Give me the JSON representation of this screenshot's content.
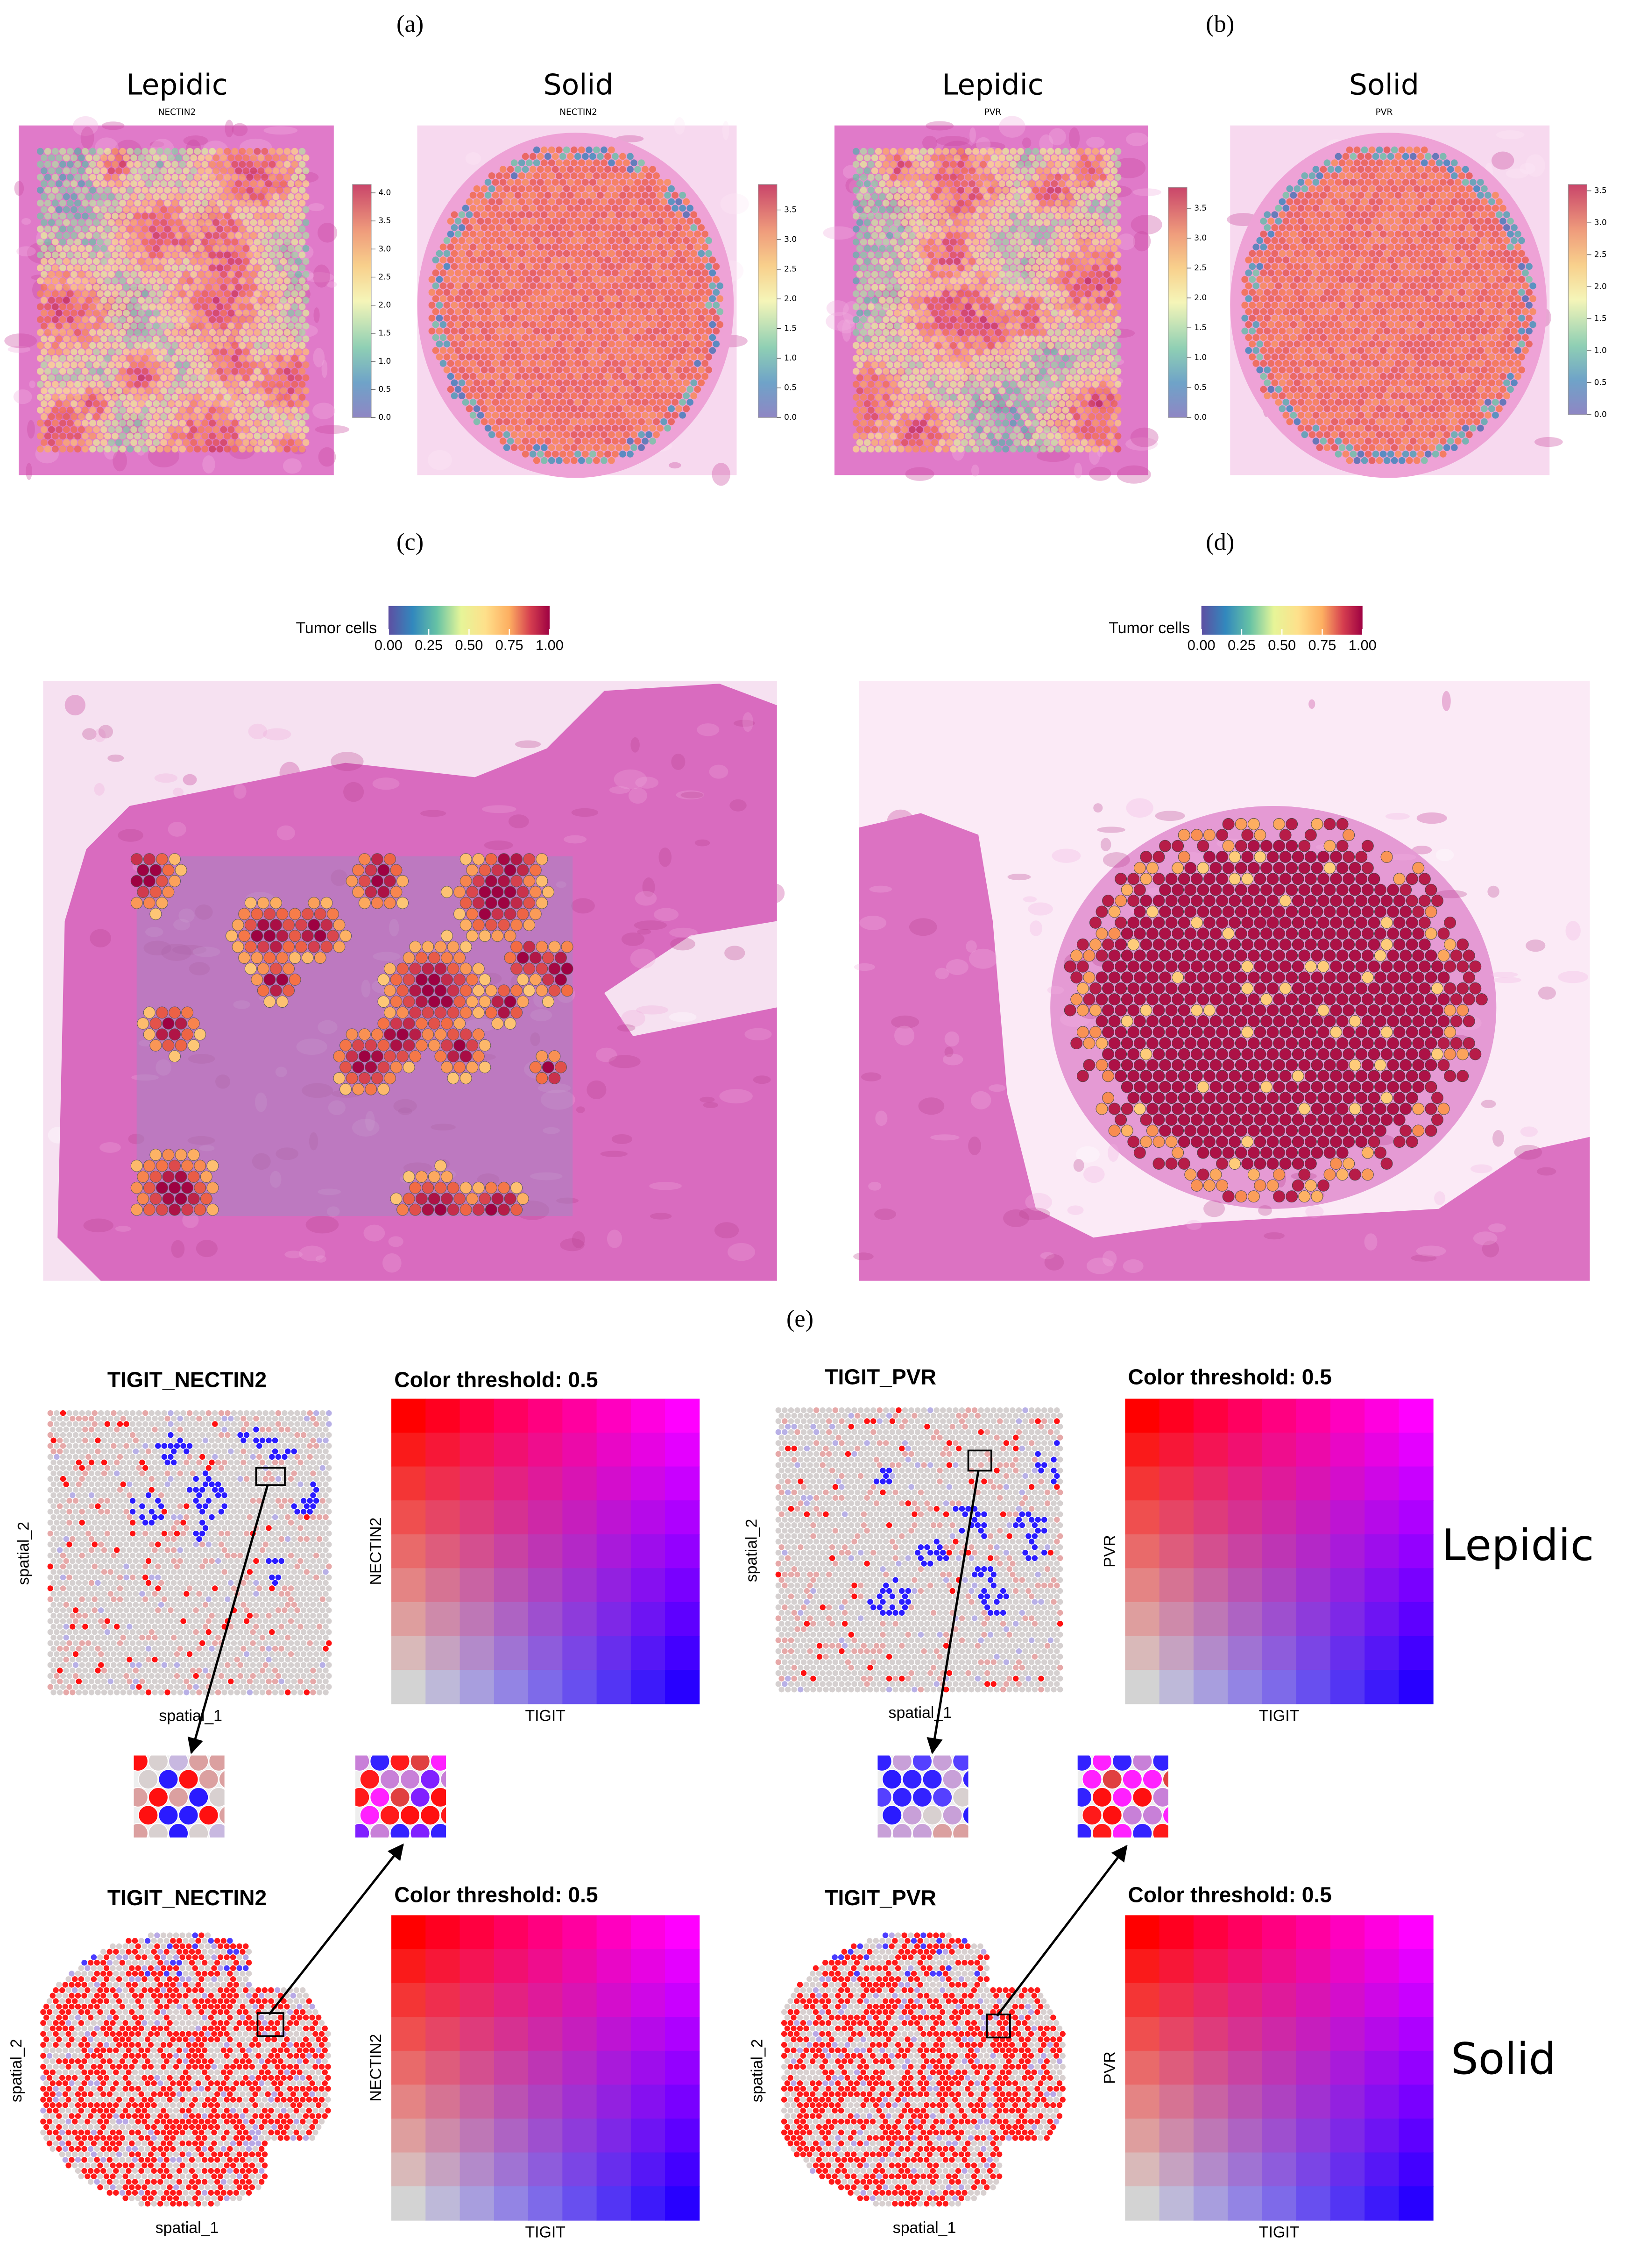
{
  "a": {
    "label": "(a)",
    "maps": [
      {
        "title": "Lepidic",
        "gene": "NECTIN2",
        "colorbar": {
          "lim": [
            0,
            4.15
          ],
          "ticks": [
            {
              "value": 0,
              "label": "0.0"
            },
            0.5,
            {
              "value": 1,
              "label": "1.0"
            },
            1.5,
            {
              "value": 2,
              "label": "2.0"
            },
            2.5,
            {
              "value": 3,
              "label": "3.0"
            },
            3.5,
            {
              "value": 4,
              "label": "4.0"
            }
          ]
        }
      },
      {
        "title": "Solid",
        "gene": "NECTIN2",
        "colorbar": {
          "lim": [
            0,
            3.93
          ],
          "ticks": [
            {
              "value": 0,
              "label": "0.0"
            },
            0.5,
            {
              "value": 1,
              "label": "1.0"
            },
            1.5,
            {
              "value": 2,
              "label": "2.0"
            },
            2.5,
            {
              "value": 3,
              "label": "3.0"
            },
            3.5
          ]
        }
      }
    ]
  },
  "b": {
    "label": "(b)",
    "maps": [
      {
        "title": "Lepidic",
        "gene": "PVR",
        "colorbar": {
          "lim": [
            0,
            3.85
          ],
          "ticks": [
            {
              "value": 0,
              "label": "0.0"
            },
            0.5,
            {
              "value": 1,
              "label": "1.0"
            },
            1.5,
            {
              "value": 2,
              "label": "2.0"
            },
            2.5,
            {
              "value": 3,
              "label": "3.0"
            },
            3.5
          ]
        }
      },
      {
        "title": "Solid",
        "gene": "PVR",
        "colorbar": {
          "lim": [
            0,
            3.6
          ],
          "ticks": [
            {
              "value": 0,
              "label": "0.0"
            },
            0.5,
            {
              "value": 1,
              "label": "1.0"
            },
            1.5,
            {
              "value": 2,
              "label": "2.0"
            },
            2.5,
            {
              "value": 3,
              "label": "3.0"
            },
            3.5
          ]
        }
      }
    ]
  },
  "c": {
    "label": "(c)",
    "legend_title": "Tumor cells",
    "colorbar": {
      "lim": [
        0,
        1
      ],
      "ticks": [
        {
          "value": 0,
          "label": "0.00"
        },
        0.25,
        {
          "value": 0.5,
          "label": "0.50"
        },
        0.75,
        {
          "value": 1,
          "label": "1.00"
        }
      ]
    }
  },
  "d": {
    "label": "(d)",
    "legend_title": "Tumor cells",
    "colorbar": {
      "lim": [
        0,
        1
      ],
      "ticks": [
        {
          "value": 0,
          "label": "0.00"
        },
        0.25,
        {
          "value": 0.5,
          "label": "0.50"
        },
        0.75,
        {
          "value": 1,
          "label": "1.00"
        }
      ]
    }
  },
  "e": {
    "label": "(e)",
    "rows": [
      {
        "group": "Lepidic",
        "plots": [
          {
            "title": "TIGIT_NECTIN2",
            "x_label": "spatial_1",
            "y_label": "spatial_2",
            "legend_title": "Color threshold: 0.5",
            "legend_x_label": "TIGIT",
            "legend_y_label": "NECTIN2"
          },
          {
            "title": "TIGIT_PVR",
            "x_label": "spatial_1",
            "y_label": "spatial_2",
            "legend_title": "Color threshold: 0.5",
            "legend_x_label": "TIGIT",
            "legend_y_label": "PVR"
          }
        ]
      },
      {
        "group": "Solid",
        "plots": [
          {
            "title": "TIGIT_NECTIN2",
            "x_label": "spatial_1",
            "y_label": "spatial_2",
            "legend_title": "Color threshold: 0.5",
            "legend_x_label": "TIGIT",
            "legend_y_label": "NECTIN2"
          },
          {
            "title": "TIGIT_PVR",
            "x_label": "spatial_1",
            "y_label": "spatial_2",
            "legend_title": "Color threshold: 0.5",
            "legend_x_label": "TIGIT",
            "legend_y_label": "PVR"
          }
        ]
      }
    ]
  }
}
